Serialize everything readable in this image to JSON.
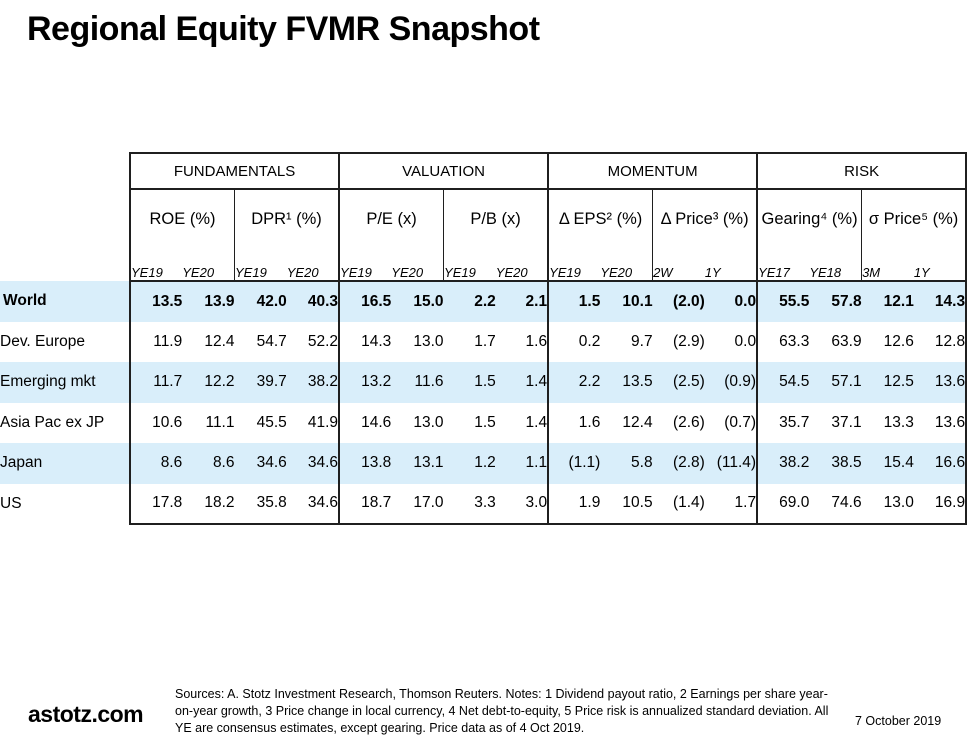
{
  "title": "Regional Equity FVMR Snapshot",
  "table": {
    "groups": [
      {
        "label": "FUNDAMENTALS",
        "subgroups": [
          {
            "label": "ROE (%)",
            "cols": [
              "YE19",
              "YE20"
            ]
          },
          {
            "label": "DPR¹ (%)",
            "cols": [
              "YE19",
              "YE20"
            ]
          }
        ]
      },
      {
        "label": "VALUATION",
        "subgroups": [
          {
            "label": "P/E (x)",
            "cols": [
              "YE19",
              "YE20"
            ]
          },
          {
            "label": "P/B (x)",
            "cols": [
              "YE19",
              "YE20"
            ]
          }
        ]
      },
      {
        "label": "MOMENTUM",
        "subgroups": [
          {
            "label": "Δ EPS² (%)",
            "cols": [
              "YE19",
              "YE20"
            ]
          },
          {
            "label": "Δ Price³ (%)",
            "cols": [
              "2W",
              "1Y"
            ]
          }
        ]
      },
      {
        "label": "RISK",
        "subgroups": [
          {
            "label": "Gearing⁴ (%)",
            "cols": [
              "YE17",
              "YE18"
            ]
          },
          {
            "label": "σ Price⁵ (%)",
            "cols": [
              "3M",
              "1Y"
            ]
          }
        ]
      }
    ],
    "rows": [
      {
        "label": "World",
        "values": [
          "13.5",
          "13.9",
          "42.0",
          "40.3",
          "16.5",
          "15.0",
          "2.2",
          "2.1",
          "1.5",
          "10.1",
          "(2.0)",
          "0.0",
          "55.5",
          "57.8",
          "12.1",
          "14.3"
        ]
      },
      {
        "label": "Dev. Europe",
        "values": [
          "11.9",
          "12.4",
          "54.7",
          "52.2",
          "14.3",
          "13.0",
          "1.7",
          "1.6",
          "0.2",
          "9.7",
          "(2.9)",
          "0.0",
          "63.3",
          "63.9",
          "12.6",
          "12.8"
        ]
      },
      {
        "label": "Emerging mkt",
        "values": [
          "11.7",
          "12.2",
          "39.7",
          "38.2",
          "13.2",
          "11.6",
          "1.5",
          "1.4",
          "2.2",
          "13.5",
          "(2.5)",
          "(0.9)",
          "54.5",
          "57.1",
          "12.5",
          "13.6"
        ]
      },
      {
        "label": "Asia Pac ex JP",
        "values": [
          "10.6",
          "11.1",
          "45.5",
          "41.9",
          "14.6",
          "13.0",
          "1.5",
          "1.4",
          "1.6",
          "12.4",
          "(2.6)",
          "(0.7)",
          "35.7",
          "37.1",
          "13.3",
          "13.6"
        ]
      },
      {
        "label": "Japan",
        "values": [
          "8.6",
          "8.6",
          "34.6",
          "34.6",
          "13.8",
          "13.1",
          "1.2",
          "1.1",
          "(1.1)",
          "5.8",
          "(2.8)",
          "(11.4)",
          "38.2",
          "38.5",
          "15.4",
          "16.6"
        ]
      },
      {
        "label": "US",
        "values": [
          "17.8",
          "18.2",
          "35.8",
          "34.6",
          "18.7",
          "17.0",
          "3.3",
          "3.0",
          "1.9",
          "10.5",
          "(1.4)",
          "1.7",
          "69.0",
          "74.6",
          "13.0",
          "16.9"
        ]
      }
    ]
  },
  "footer": {
    "brand": "astotz.com",
    "sources": "Sources: A. Stotz Investment Research, Thomson Reuters. Notes: 1 Dividend payout ratio, 2 Earnings per share year-on-year growth, 3 Price change in local currency, 4 Net debt-to-equity, 5 Price risk is annualized standard deviation. All YE are consensus estimates, except gearing. Price data as of 4 Oct 2019.",
    "date": "7 October 2019"
  },
  "colors": {
    "row_highlight": "#d9eefa",
    "border": "#1f1f1f",
    "text": "#000000",
    "background": "#ffffff"
  },
  "chart_data": {
    "type": "table",
    "title": "Regional Equity FVMR Snapshot",
    "column_groups": [
      "FUNDAMENTALS",
      "VALUATION",
      "MOMENTUM",
      "RISK"
    ],
    "columns": [
      "ROE (%) YE19",
      "ROE (%) YE20",
      "DPR (%) YE19",
      "DPR (%) YE20",
      "P/E (x) YE19",
      "P/E (x) YE20",
      "P/B (x) YE19",
      "P/B (x) YE20",
      "Δ EPS (%) YE19",
      "Δ EPS (%) YE20",
      "Δ Price (%) 2W",
      "Δ Price (%) 1Y",
      "Gearing (%) YE17",
      "Gearing (%) YE18",
      "σ Price (%) 3M",
      "σ Price (%) 1Y"
    ],
    "rows": [
      {
        "label": "World",
        "values": [
          13.5,
          13.9,
          42.0,
          40.3,
          16.5,
          15.0,
          2.2,
          2.1,
          1.5,
          10.1,
          -2.0,
          0.0,
          55.5,
          57.8,
          12.1,
          14.3
        ]
      },
      {
        "label": "Dev. Europe",
        "values": [
          11.9,
          12.4,
          54.7,
          52.2,
          14.3,
          13.0,
          1.7,
          1.6,
          0.2,
          9.7,
          -2.9,
          0.0,
          63.3,
          63.9,
          12.6,
          12.8
        ]
      },
      {
        "label": "Emerging mkt",
        "values": [
          11.7,
          12.2,
          39.7,
          38.2,
          13.2,
          11.6,
          1.5,
          1.4,
          2.2,
          13.5,
          -2.5,
          -0.9,
          54.5,
          57.1,
          12.5,
          13.6
        ]
      },
      {
        "label": "Asia Pac ex JP",
        "values": [
          10.6,
          11.1,
          45.5,
          41.9,
          14.6,
          13.0,
          1.5,
          1.4,
          1.6,
          12.4,
          -2.6,
          -0.7,
          35.7,
          37.1,
          13.3,
          13.6
        ]
      },
      {
        "label": "Japan",
        "values": [
          8.6,
          8.6,
          34.6,
          34.6,
          13.8,
          13.1,
          1.2,
          1.1,
          -1.1,
          5.8,
          -2.8,
          -11.4,
          38.2,
          38.5,
          15.4,
          16.6
        ]
      },
      {
        "label": "US",
        "values": [
          17.8,
          18.2,
          35.8,
          34.6,
          18.7,
          17.0,
          3.3,
          3.0,
          1.9,
          10.5,
          -1.4,
          1.7,
          69.0,
          74.6,
          13.0,
          16.9
        ]
      }
    ],
    "notes": "Negative values shown in parentheses in the rendered table."
  }
}
